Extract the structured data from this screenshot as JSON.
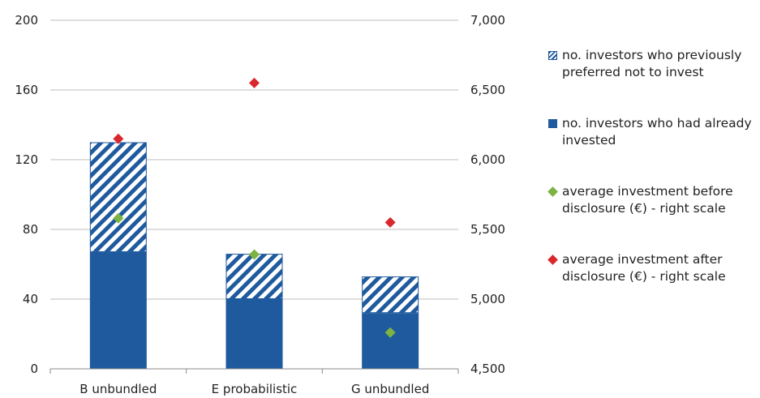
{
  "chart_data": {
    "type": "bar",
    "stacked": true,
    "categories": [
      "B unbundled",
      "E probabilistic",
      "G unbundled"
    ],
    "series": [
      {
        "name": "no. investors who had already invested",
        "kind": "bar",
        "axis": "left",
        "style": "solid",
        "color": "#1f5a9e",
        "values": [
          67,
          40,
          32
        ]
      },
      {
        "name": "no. investors who previously preferred not to invest",
        "kind": "bar",
        "axis": "left",
        "style": "hatched",
        "color": "#1f5a9e",
        "values": [
          63,
          26,
          21
        ]
      },
      {
        "name": "average investment before disclosure (€) - right scale",
        "kind": "marker",
        "axis": "right",
        "color": "#7cb342",
        "values": [
          5580,
          5320,
          4760
        ]
      },
      {
        "name": "average investment after disclosure (€) - right scale",
        "kind": "marker",
        "axis": "right",
        "color": "#d9282c",
        "values": [
          6150,
          6550,
          5550
        ]
      }
    ],
    "ylim_left": [
      0,
      200
    ],
    "yticks_left": [
      "0",
      "40",
      "80",
      "120",
      "160",
      "200"
    ],
    "ylim_right": [
      4500,
      7000
    ],
    "yticks_right": [
      "4,500",
      "5,000",
      "5,500",
      "6,000",
      "6,500",
      "7,000"
    ],
    "grid": true,
    "legend_position": "right"
  },
  "legend": [
    {
      "label": "no. investors who previously preferred not to invest",
      "marker": "hatched-square"
    },
    {
      "label": "no. investors who had already invested",
      "marker": "solid-square"
    },
    {
      "label": "average investment before disclosure (€) - right scale",
      "marker": "diamond",
      "color": "#7cb342"
    },
    {
      "label": "average investment after disclosure (€) - right scale",
      "marker": "diamond",
      "color": "#d9282c"
    }
  ]
}
